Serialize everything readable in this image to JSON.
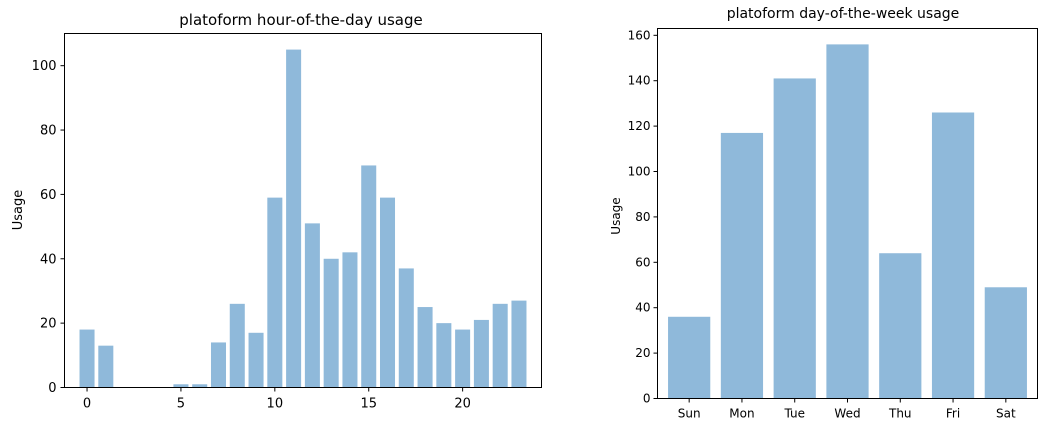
{
  "chart_data": [
    {
      "type": "bar",
      "title": "platoform hour-of-the-day usage",
      "xlabel": "",
      "ylabel": "Usage",
      "x": [
        0,
        1,
        2,
        3,
        4,
        5,
        6,
        7,
        8,
        9,
        10,
        11,
        12,
        13,
        14,
        15,
        16,
        17,
        18,
        19,
        20,
        21,
        22,
        23
      ],
      "values": [
        18,
        13,
        0,
        0,
        0,
        1,
        1,
        14,
        26,
        17,
        59,
        105,
        51,
        40,
        42,
        69,
        59,
        37,
        25,
        20,
        18,
        21,
        26,
        27
      ],
      "xlim": [
        -1.2,
        24.2
      ],
      "ylim": [
        0,
        110
      ],
      "xticks": [
        0,
        5,
        10,
        15,
        20
      ],
      "yticks": [
        0,
        20,
        40,
        60,
        80,
        100
      ],
      "color": "#8fb9da",
      "grid": false
    },
    {
      "type": "bar",
      "title": "platoform day-of-the-week usage",
      "xlabel": "",
      "ylabel": "Usage",
      "categories": [
        "Sun",
        "Mon",
        "Tue",
        "Wed",
        "Thu",
        "Fri",
        "Sat"
      ],
      "values": [
        36,
        117,
        141,
        156,
        64,
        126,
        49
      ],
      "ylim": [
        0,
        163
      ],
      "yticks": [
        0,
        20,
        40,
        60,
        80,
        100,
        120,
        140,
        160
      ],
      "color": "#8fb9da",
      "grid": false
    }
  ]
}
